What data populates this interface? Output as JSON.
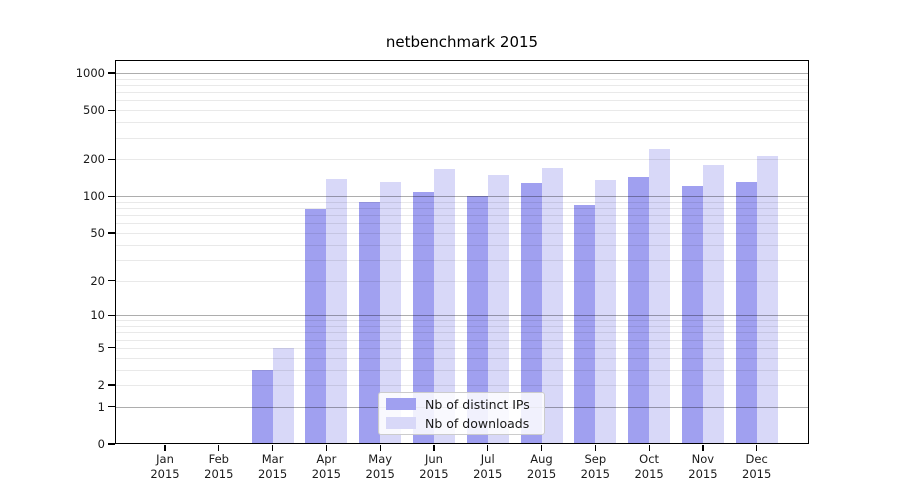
{
  "chart_data": {
    "type": "bar",
    "title": "netbenchmark 2015",
    "x_tick_labels": [
      [
        "Jan",
        "2015"
      ],
      [
        "Feb",
        "2015"
      ],
      [
        "Mar",
        "2015"
      ],
      [
        "Apr",
        "2015"
      ],
      [
        "May",
        "2015"
      ],
      [
        "Jun",
        "2015"
      ],
      [
        "Jul",
        "2015"
      ],
      [
        "Aug",
        "2015"
      ],
      [
        "Sep",
        "2015"
      ],
      [
        "Oct",
        "2015"
      ],
      [
        "Nov",
        "2015"
      ],
      [
        "Dec",
        "2015"
      ]
    ],
    "series": [
      {
        "name": "Nb of distinct IPs",
        "color": "#a0a0f0",
        "values": [
          0,
          0,
          3,
          78,
          90,
          108,
          100,
          127,
          85,
          143,
          122,
          130
        ]
      },
      {
        "name": "Nb of downloads",
        "color": "#d8d8f8",
        "values": [
          0,
          0,
          5,
          138,
          130,
          165,
          148,
          170,
          136,
          240,
          180,
          213
        ]
      }
    ],
    "y_scale": "log1p",
    "y_tick_values": [
      0,
      1,
      2,
      5,
      10,
      20,
      50,
      100,
      200,
      500,
      1000
    ],
    "y_axis_top_value": 1278,
    "grid": {
      "on": true,
      "major_lines": [
        1,
        10,
        100,
        1000
      ],
      "minor_multipliers": [
        2,
        3,
        4,
        5,
        6,
        7,
        8,
        9
      ],
      "minor_decades": [
        1,
        10,
        100
      ]
    },
    "legend": {
      "position": "lower-center",
      "border_color": "#cccccc"
    },
    "xlabel": "",
    "ylabel": ""
  }
}
